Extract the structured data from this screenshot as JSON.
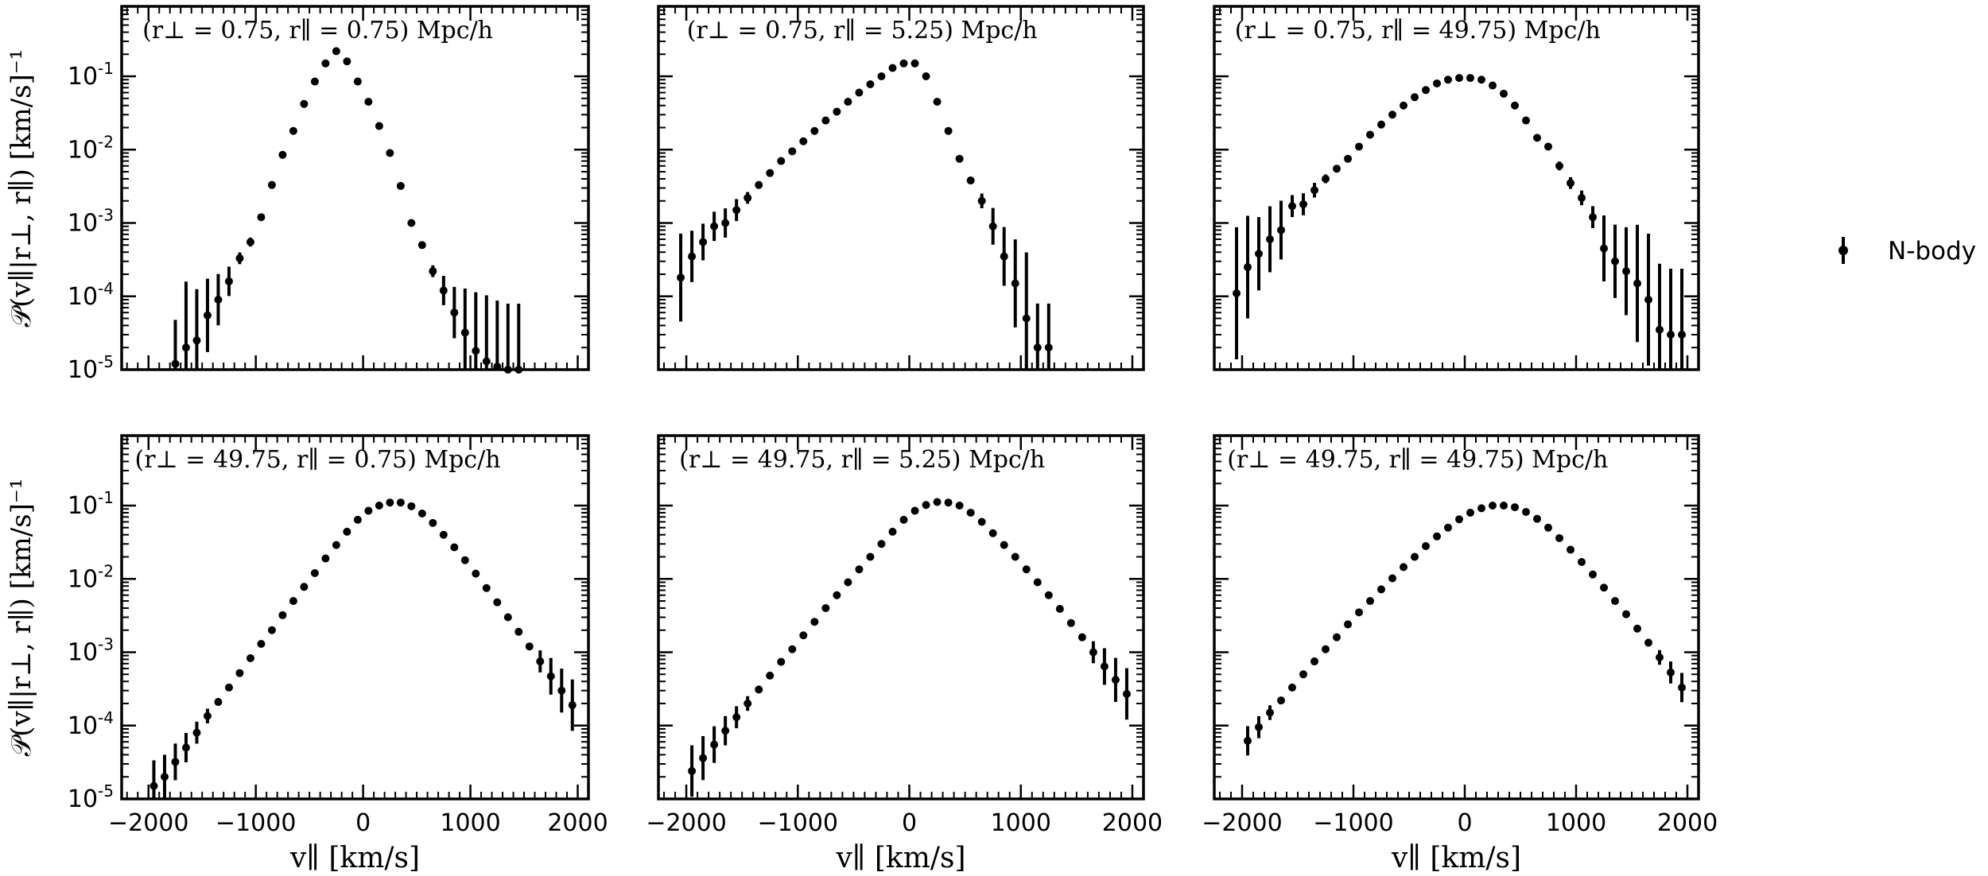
{
  "legend": {
    "label": "N-body",
    "placement": "right"
  },
  "axes_text": {
    "ylabel": "𝒫(v∥|r⊥, r∥) [km/s]⁻¹",
    "xlabel": "v∥ [km/s]"
  },
  "chart_data": [
    {
      "type": "scatter",
      "row": 0,
      "col": 0,
      "title": "(r⊥ = 0.75, r∥ = 0.75) Mpc/h",
      "xlabel": "",
      "ylabel": "𝒫(v∥|r⊥, r∥) [km/s]⁻¹",
      "xlim": [
        -2250,
        2100
      ],
      "ylim": [
        1e-05,
        0.9
      ],
      "yscale": "log",
      "xticks": [],
      "yticks": [
        "10-5",
        "10-4",
        "10-3",
        "10-2",
        "10-1"
      ],
      "series": [
        {
          "name": "N-body",
          "x": [
            -1750,
            -1650,
            -1550,
            -1450,
            -1350,
            -1250,
            -1150,
            -1050,
            -950,
            -850,
            -750,
            -650,
            -550,
            -450,
            -350,
            -250,
            -150,
            -50,
            50,
            150,
            250,
            350,
            450,
            550,
            650,
            750,
            850,
            950,
            1050,
            1150,
            1250,
            1350,
            1450
          ],
          "y": [
            1.2e-05,
            2e-05,
            2.5e-05,
            5.5e-05,
            9e-05,
            0.00016,
            0.00033,
            0.00055,
            0.0012,
            0.0033,
            0.0085,
            0.018,
            0.042,
            0.085,
            0.15,
            0.22,
            0.16,
            0.085,
            0.045,
            0.021,
            0.009,
            0.0032,
            0.001,
            0.0005,
            0.00022,
            0.00012,
            6e-05,
            3.2e-05,
            1.8e-05,
            1.3e-05,
            1.1e-05,
            1e-05,
            1e-05
          ],
          "yerr": [
            0.6,
            0.9,
            0.7,
            0.5,
            0.35,
            0.2,
            0.08,
            0.06,
            0.04,
            0.02,
            0.01,
            0,
            0,
            0,
            0,
            0,
            0,
            0,
            0,
            0,
            0,
            0,
            0,
            0.04,
            0.08,
            0.2,
            0.35,
            0.6,
            0.8,
            0.9,
            0.9,
            0.9,
            0.9
          ]
        }
      ]
    },
    {
      "type": "scatter",
      "row": 0,
      "col": 1,
      "title": "(r⊥ = 0.75, r∥ = 5.25) Mpc/h",
      "xlabel": "",
      "ylabel": "",
      "xlim": [
        -2250,
        2100
      ],
      "ylim": [
        1e-05,
        0.9
      ],
      "yscale": "log",
      "xticks": [],
      "yticks": [],
      "series": [
        {
          "name": "N-body",
          "x": [
            -2050,
            -1950,
            -1850,
            -1750,
            -1650,
            -1550,
            -1450,
            -1350,
            -1250,
            -1150,
            -1050,
            -950,
            -850,
            -750,
            -650,
            -550,
            -450,
            -350,
            -250,
            -150,
            -50,
            50,
            150,
            250,
            350,
            450,
            550,
            650,
            750,
            850,
            950,
            1050,
            1150,
            1250
          ],
          "y": [
            0.00018,
            0.00035,
            0.00055,
            0.0009,
            0.001,
            0.0015,
            0.0022,
            0.0033,
            0.0048,
            0.007,
            0.0095,
            0.013,
            0.018,
            0.025,
            0.033,
            0.045,
            0.06,
            0.078,
            0.1,
            0.13,
            0.15,
            0.15,
            0.1,
            0.045,
            0.018,
            0.0075,
            0.0038,
            0.002,
            0.0009,
            0.00035,
            0.00015,
            5e-05,
            2e-05,
            2e-05
          ],
          "yerr": [
            0.6,
            0.35,
            0.25,
            0.2,
            0.2,
            0.15,
            0.08,
            0.05,
            0.04,
            0.03,
            0,
            0,
            0,
            0,
            0,
            0,
            0,
            0,
            0,
            0,
            0,
            0,
            0,
            0,
            0,
            0,
            0.05,
            0.1,
            0.25,
            0.4,
            0.6,
            0.9,
            0.6,
            0.6
          ]
        }
      ]
    },
    {
      "type": "scatter",
      "row": 0,
      "col": 2,
      "title": "(r⊥ = 0.75, r∥ = 49.75) Mpc/h",
      "xlabel": "",
      "ylabel": "",
      "xlim": [
        -2250,
        2100
      ],
      "ylim": [
        1e-05,
        0.9
      ],
      "yscale": "log",
      "xticks": [],
      "yticks": [],
      "series": [
        {
          "name": "N-body",
          "x": [
            -2050,
            -1950,
            -1850,
            -1750,
            -1650,
            -1550,
            -1450,
            -1350,
            -1250,
            -1150,
            -1050,
            -950,
            -850,
            -750,
            -650,
            -550,
            -450,
            -350,
            -250,
            -150,
            -50,
            50,
            150,
            250,
            350,
            450,
            550,
            650,
            750,
            850,
            950,
            1050,
            1150,
            1250,
            1350,
            1450,
            1550,
            1650,
            1750,
            1850,
            1950
          ],
          "y": [
            0.00011,
            0.00025,
            0.00038,
            0.0006,
            0.0008,
            0.0017,
            0.0018,
            0.0028,
            0.004,
            0.0055,
            0.0075,
            0.011,
            0.016,
            0.022,
            0.03,
            0.04,
            0.052,
            0.065,
            0.08,
            0.09,
            0.095,
            0.095,
            0.09,
            0.075,
            0.058,
            0.04,
            0.025,
            0.0145,
            0.011,
            0.006,
            0.0035,
            0.0022,
            0.0012,
            0.00045,
            0.0003,
            0.00022,
            0.00015,
            9e-05,
            3.5e-05,
            3e-05,
            3e-05
          ],
          "yerr": [
            0.9,
            0.7,
            0.5,
            0.45,
            0.4,
            0.15,
            0.15,
            0.1,
            0.06,
            0.05,
            0.04,
            0,
            0,
            0,
            0,
            0,
            0,
            0,
            0,
            0,
            0,
            0,
            0,
            0,
            0,
            0,
            0,
            0,
            0.04,
            0.06,
            0.08,
            0.1,
            0.15,
            0.45,
            0.5,
            0.6,
            0.8,
            0.9,
            0.9,
            0.9,
            0.9
          ]
        }
      ]
    },
    {
      "type": "scatter",
      "row": 1,
      "col": 0,
      "title": "(r⊥ = 49.75, r∥ = 0.75) Mpc/h",
      "xlabel": "v∥ [km/s]",
      "ylabel": "𝒫(v∥|r⊥, r∥) [km/s]⁻¹",
      "xlim": [
        -2250,
        2100
      ],
      "ylim": [
        1e-05,
        0.9
      ],
      "yscale": "log",
      "xticks": [
        "−2000",
        "−1000",
        "0",
        "1000",
        "2000"
      ],
      "yticks": [
        "10-5",
        "10-4",
        "10-3",
        "10-2",
        "10-1"
      ],
      "series": [
        {
          "name": "N-body",
          "x": [
            -1950,
            -1850,
            -1750,
            -1650,
            -1550,
            -1450,
            -1350,
            -1250,
            -1150,
            -1050,
            -950,
            -850,
            -750,
            -650,
            -550,
            -450,
            -350,
            -250,
            -150,
            -50,
            50,
            150,
            250,
            350,
            450,
            550,
            650,
            750,
            850,
            950,
            1050,
            1150,
            1250,
            1350,
            1450,
            1550,
            1650,
            1750,
            1850,
            1950
          ],
          "y": [
            1.5e-05,
            2e-05,
            3.2e-05,
            5e-05,
            8e-05,
            0.000135,
            0.00021,
            0.00033,
            0.00052,
            0.00083,
            0.0013,
            0.002,
            0.0032,
            0.005,
            0.0078,
            0.012,
            0.019,
            0.029,
            0.044,
            0.064,
            0.085,
            0.1,
            0.11,
            0.11,
            0.098,
            0.078,
            0.058,
            0.04,
            0.027,
            0.018,
            0.0118,
            0.0075,
            0.0048,
            0.003,
            0.0019,
            0.0012,
            0.00075,
            0.00047,
            0.0003,
            0.00019
          ],
          "yerr": [
            0.35,
            0.3,
            0.25,
            0.2,
            0.15,
            0.1,
            0.05,
            0,
            0,
            0,
            0,
            0,
            0,
            0,
            0,
            0,
            0,
            0,
            0,
            0,
            0,
            0,
            0,
            0,
            0,
            0,
            0,
            0,
            0,
            0,
            0,
            0,
            0,
            0,
            0,
            0.05,
            0.15,
            0.25,
            0.3,
            0.35
          ]
        }
      ]
    },
    {
      "type": "scatter",
      "row": 1,
      "col": 1,
      "title": "(r⊥ = 49.75, r∥ = 5.25) Mpc/h",
      "xlabel": "v∥ [km/s]",
      "ylabel": "",
      "xlim": [
        -2250,
        2100
      ],
      "ylim": [
        1e-05,
        0.9
      ],
      "yscale": "log",
      "xticks": [
        "−2000",
        "−1000",
        "0",
        "1000",
        "2000"
      ],
      "yticks": [],
      "series": [
        {
          "name": "N-body",
          "x": [
            -1950,
            -1850,
            -1750,
            -1650,
            -1550,
            -1450,
            -1350,
            -1250,
            -1150,
            -1050,
            -950,
            -850,
            -750,
            -650,
            -550,
            -450,
            -350,
            -250,
            -150,
            -50,
            50,
            150,
            250,
            350,
            450,
            550,
            650,
            750,
            850,
            950,
            1050,
            1150,
            1250,
            1350,
            1450,
            1550,
            1650,
            1750,
            1850,
            1950
          ],
          "y": [
            2.4e-05,
            3.6e-05,
            5.5e-05,
            8.5e-05,
            0.00013,
            0.0002,
            0.00031,
            0.00048,
            0.00074,
            0.0011,
            0.0017,
            0.0026,
            0.004,
            0.006,
            0.009,
            0.0135,
            0.02,
            0.03,
            0.044,
            0.064,
            0.085,
            0.102,
            0.112,
            0.11,
            0.1,
            0.08,
            0.06,
            0.042,
            0.029,
            0.02,
            0.0135,
            0.009,
            0.006,
            0.0039,
            0.0025,
            0.0016,
            0.001,
            0.00064,
            0.00042,
            0.00027
          ],
          "yerr": [
            0.35,
            0.3,
            0.25,
            0.2,
            0.15,
            0.1,
            0.05,
            0,
            0,
            0,
            0,
            0,
            0,
            0,
            0,
            0,
            0,
            0,
            0,
            0,
            0,
            0,
            0,
            0,
            0,
            0,
            0,
            0,
            0,
            0,
            0,
            0,
            0,
            0,
            0,
            0.05,
            0.15,
            0.25,
            0.3,
            0.35
          ]
        }
      ]
    },
    {
      "type": "scatter",
      "row": 1,
      "col": 2,
      "title": "(r⊥ = 49.75, r∥ = 49.75) Mpc/h",
      "xlabel": "v∥ [km/s]",
      "ylabel": "",
      "xlim": [
        -2250,
        2100
      ],
      "ylim": [
        1e-05,
        0.9
      ],
      "yscale": "log",
      "xticks": [
        "−2000",
        "−1000",
        "0",
        "1000",
        "2000"
      ],
      "yticks": [],
      "series": [
        {
          "name": "N-body",
          "x": [
            -1950,
            -1850,
            -1750,
            -1650,
            -1550,
            -1450,
            -1350,
            -1250,
            -1150,
            -1050,
            -950,
            -850,
            -750,
            -650,
            -550,
            -450,
            -350,
            -250,
            -150,
            -50,
            50,
            150,
            250,
            350,
            450,
            550,
            650,
            750,
            850,
            950,
            1050,
            1150,
            1250,
            1350,
            1450,
            1550,
            1650,
            1750,
            1850,
            1950
          ],
          "y": [
            6.2e-05,
            9.5e-05,
            0.00015,
            0.00022,
            0.00033,
            0.0005,
            0.00075,
            0.0011,
            0.0016,
            0.0024,
            0.0035,
            0.005,
            0.0072,
            0.0102,
            0.0145,
            0.02,
            0.028,
            0.038,
            0.05,
            0.065,
            0.08,
            0.092,
            0.1,
            0.1,
            0.095,
            0.082,
            0.066,
            0.05,
            0.036,
            0.025,
            0.017,
            0.0115,
            0.0076,
            0.005,
            0.0033,
            0.0021,
            0.00135,
            0.00085,
            0.00053,
            0.00033
          ],
          "yerr": [
            0.2,
            0.15,
            0.1,
            0.05,
            0,
            0,
            0,
            0,
            0,
            0,
            0,
            0,
            0,
            0,
            0,
            0,
            0,
            0,
            0,
            0,
            0,
            0,
            0,
            0,
            0,
            0,
            0,
            0,
            0,
            0,
            0,
            0,
            0,
            0,
            0,
            0,
            0.05,
            0.1,
            0.15,
            0.2
          ]
        }
      ]
    }
  ]
}
